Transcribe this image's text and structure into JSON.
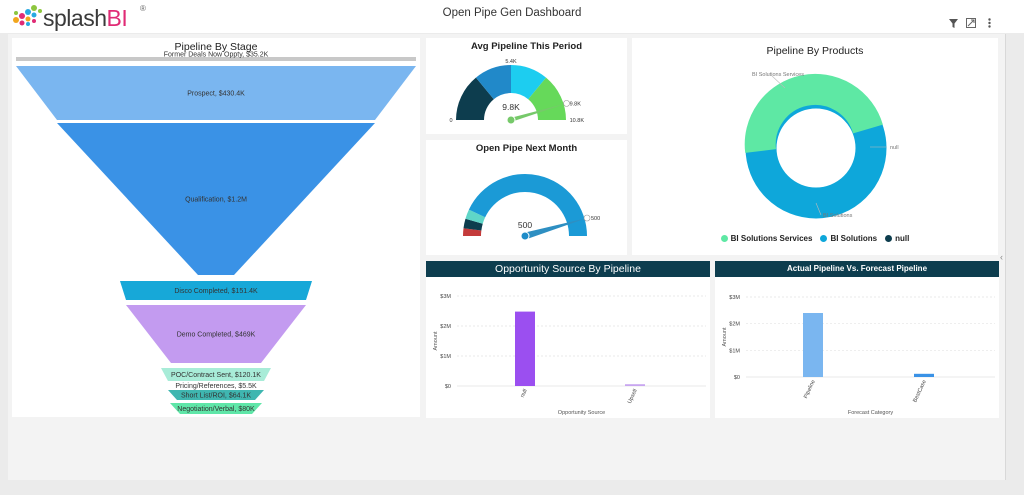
{
  "app": {
    "logo": {
      "text": "splash",
      "accent": "BI",
      "reg": "®"
    },
    "title": "Open Pipe Gen Dashboard",
    "toolbar": {
      "filter_icon": "filter-icon",
      "expand_icon": "expand-icon",
      "menu_icon": "kebab-menu-icon"
    }
  },
  "funnel": {
    "title": "Pipeline By Stage",
    "stages": [
      {
        "label": "Former Deals Now Oppty, $35.2K",
        "value": 35.2,
        "color": "#c8c8c8"
      },
      {
        "label": "Prospect, $430.4K",
        "value": 430.4,
        "color": "#7ab6f0"
      },
      {
        "label": "Qualification, $1.2M",
        "value": 1200,
        "color": "#3a92e6"
      },
      {
        "label": "Disco Completed, $151.4K",
        "value": 151.4,
        "color": "#17a8d8"
      },
      {
        "label": "Demo Completed, $469K",
        "value": 469,
        "color": "#c39bf0"
      },
      {
        "label": "POC/Contract Sent, $120.1K",
        "value": 120.1,
        "color": "#a8ecd8"
      },
      {
        "label": "Pricing/References, $5.5K",
        "value": 5.5,
        "color": "#ffffff"
      },
      {
        "label": "Short List/ROI, $64.1K",
        "value": 64.1,
        "color": "#3fb6b0"
      },
      {
        "label": "Negotiation/Verbal, $80K",
        "value": 80,
        "color": "#5fe6a8"
      }
    ]
  },
  "gauge_avg": {
    "title": "Avg Pipeline This Period",
    "min_label": "0",
    "max_label": "10.8K",
    "top_label": "5.4K",
    "value_label": "9.8K",
    "marker_label": "9.8K",
    "value": 9.8,
    "min": 0,
    "max": 10.8,
    "colors": [
      "#0d3d4e",
      "#2189c9",
      "#1dcdf0",
      "#66d95a"
    ]
  },
  "gauge_next": {
    "title": "Open Pipe Next Month",
    "max_label": "500",
    "value_label": "500",
    "value": 500,
    "min": 0,
    "max": 500,
    "colors": [
      "#c43b3b",
      "#0d3d4e",
      "#5fd6c8",
      "#1b9ad6"
    ]
  },
  "products": {
    "title": "Pipeline By Products",
    "labels": {
      "a": "BI Solutions Services",
      "b": "BI Solutions",
      "c": "null"
    },
    "legend": [
      {
        "name": "BI Solutions Services",
        "color": "#5ee8a4"
      },
      {
        "name": "BI Solutions",
        "color": "#0ea7da"
      },
      {
        "name": "null",
        "color": "#0d3d4e"
      }
    ]
  },
  "source_chart": {
    "title": "Opportunity Source By Pipeline",
    "ylabel": "Amount",
    "xlabel": "Opportunity Source",
    "yticks": [
      "$3M",
      "$2M",
      "$1M",
      "$0"
    ],
    "chart_data": {
      "type": "bar",
      "categories": [
        "null",
        "Upsell"
      ],
      "values": [
        2480000,
        60000
      ],
      "colors": [
        "#9b4ff0",
        "#c8a6f0"
      ],
      "ylim": [
        0,
        3000000
      ]
    }
  },
  "forecast_chart": {
    "title": "Actual Pipeline Vs. Forecast Pipeline",
    "ylabel": "Amount",
    "xlabel": "Forecast Category",
    "yticks": [
      "$3M",
      "$2M",
      "$1M",
      "$0"
    ],
    "chart_data": {
      "type": "bar",
      "categories": [
        "Pipeline",
        "BestCase"
      ],
      "values": [
        2400000,
        120000
      ],
      "colors": [
        "#7ab6f0",
        "#3a92e6"
      ],
      "ylim": [
        0,
        3000000
      ]
    }
  }
}
